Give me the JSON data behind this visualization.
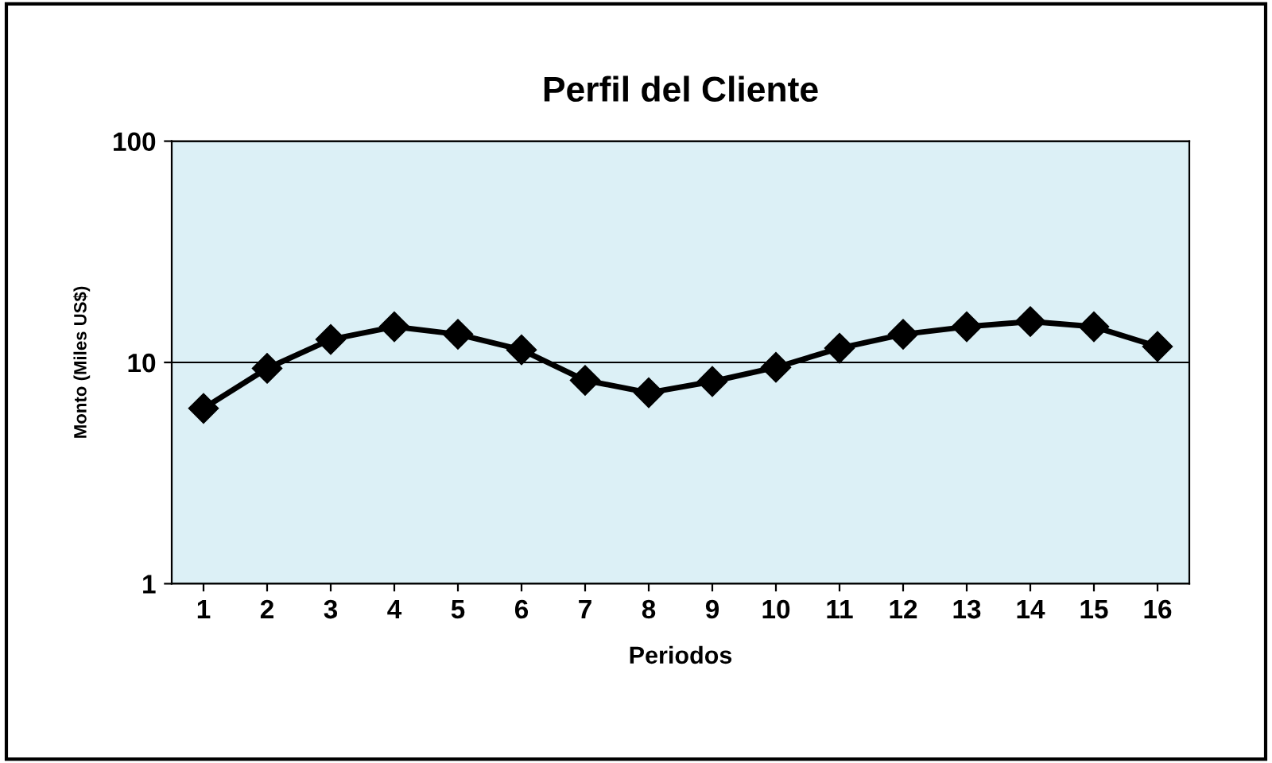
{
  "chart_data": {
    "type": "line",
    "title": "Perfil del Cliente",
    "xlabel": "Periodos",
    "ylabel": "Monto (Miles US$)",
    "categories": [
      "1",
      "2",
      "3",
      "4",
      "5",
      "6",
      "7",
      "8",
      "9",
      "10",
      "11",
      "12",
      "13",
      "14",
      "15",
      "16"
    ],
    "series": [
      {
        "color": "#000000",
        "values": [
          6.2,
          9.4,
          12.7,
          14.5,
          13.4,
          11.4,
          8.3,
          7.3,
          8.2,
          9.5,
          11.6,
          13.4,
          14.5,
          15.3,
          14.5,
          11.8
        ]
      }
    ],
    "log": "y",
    "ylim": [
      1,
      100
    ],
    "yticks": [
      1,
      10,
      100
    ],
    "grid": "y",
    "marker": "diamond",
    "line_style": "solid",
    "legend": false
  }
}
